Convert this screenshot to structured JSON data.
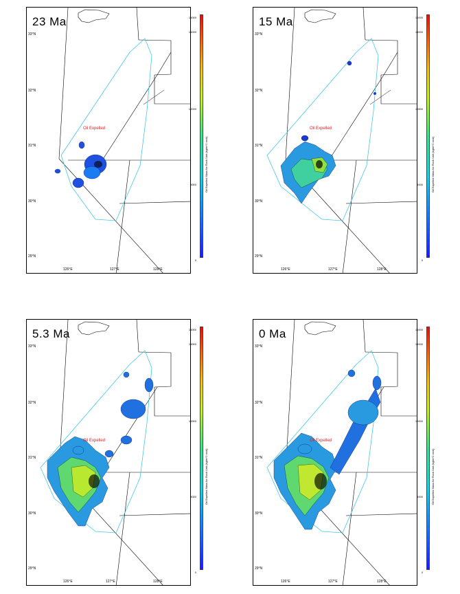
{
  "panels": [
    {
      "age": "23 Ma",
      "oil_label": "Oil Expelled"
    },
    {
      "age": "15 Ma",
      "oil_label": "Oil Expelled"
    },
    {
      "age": "5.3 Ma",
      "oil_label": "Oil Expelled"
    },
    {
      "age": "0 Ma",
      "oil_label": "Oil Expelled"
    }
  ],
  "lat_labels": [
    "33°N",
    "32°N",
    "31°N",
    "30°N",
    "29°N"
  ],
  "lon_labels": [
    "126°E",
    "127°E",
    "128°E"
  ],
  "colorbar": {
    "title": "Oil Expelled Mass for Rock Unit (kg/m^2 rock)",
    "ticks": [
      "15000",
      "10000",
      "5000",
      "0"
    ],
    "top_value": "16000",
    "colors": [
      "#1a1aff",
      "#1ad0e0",
      "#c8f020",
      "#e01010"
    ]
  },
  "map_colors": {
    "basin_outline": "#40c8e8",
    "fault_lines": "#000000",
    "label_red": "#e02020"
  }
}
